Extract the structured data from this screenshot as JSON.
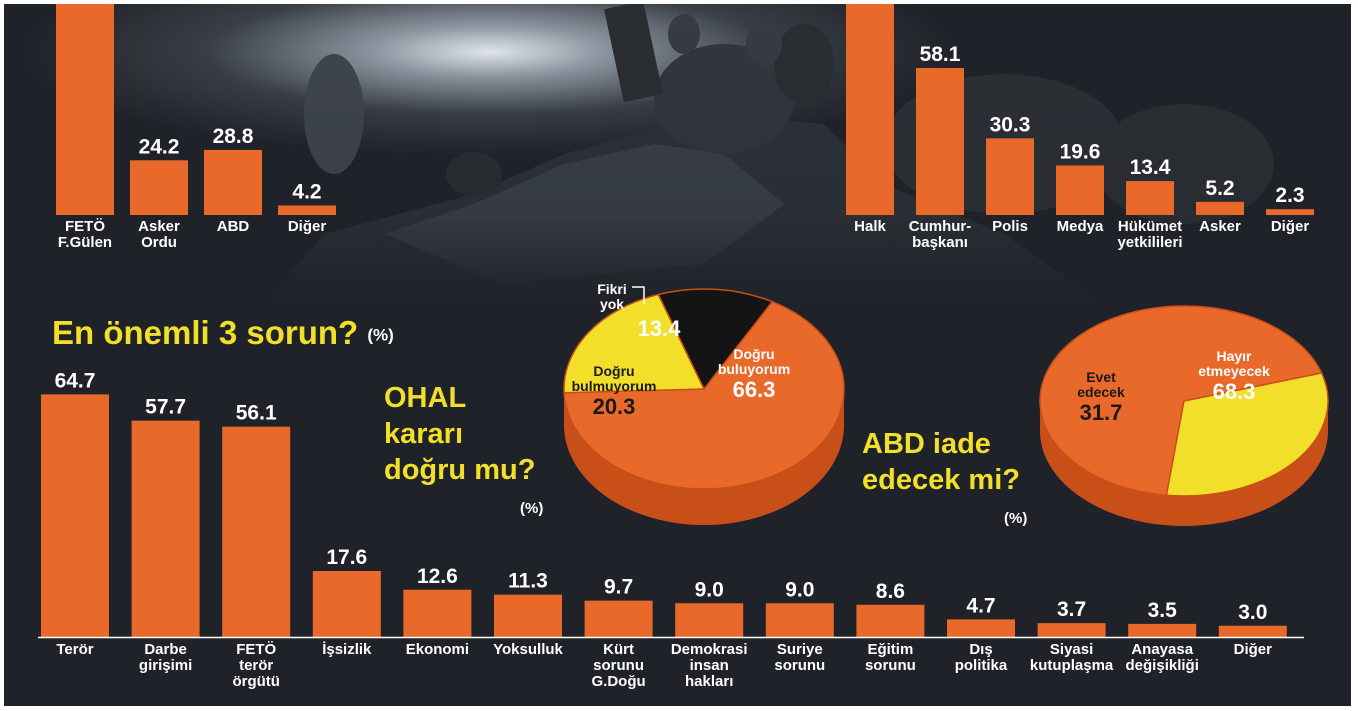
{
  "colors": {
    "bar": "#e8692a",
    "pie_main": "#e8692a",
    "pie_yellow": "#f2df2a",
    "pie_black": "#141414",
    "pie_side": "#c94f18",
    "heading": "#f2df2a",
    "background": "#1f2228"
  },
  "chart_data": [
    {
      "id": "top-left",
      "type": "bar",
      "categories": [
        "FETÖ\nF.Gülen",
        "Asker\nOrdu",
        "ABD",
        "Diğer"
      ],
      "values": [
        null,
        24.2,
        28.8,
        4.2
      ],
      "value_labels": [
        "",
        "24.2",
        "28.8",
        "4.2"
      ]
    },
    {
      "id": "top-right",
      "type": "bar",
      "categories": [
        "Halk",
        "Cumhur-\nbaşkanı",
        "Polis",
        "Medya",
        "Hükümet\nyetkilileri",
        "Asker",
        "Diğer"
      ],
      "values": [
        null,
        58.1,
        30.3,
        19.6,
        13.4,
        5.2,
        2.3
      ],
      "value_labels": [
        "",
        "58.1",
        "30.3",
        "19.6",
        "13.4",
        "5.2",
        "2.3"
      ]
    },
    {
      "id": "sorun",
      "type": "bar",
      "title": "En önemli 3 sorun?",
      "unit": "(%)",
      "categories": [
        "Terör",
        "Darbe\ngirişimi",
        "FETÖ\nterör\nörgütü",
        "İşsizlik",
        "Ekonomi",
        "Yoksulluk",
        "Kürt\nsorunu\nG.Doğu",
        "Demokrasi\ninsan\nhakları",
        "Suriye\nsorunu",
        "Eğitim\nsorunu",
        "Dış\npolitika",
        "Siyasi\nkutuplaşma",
        "Anayasa\ndeğişikliği",
        "Diğer"
      ],
      "values": [
        64.7,
        57.7,
        56.1,
        17.6,
        12.6,
        11.3,
        9.7,
        9.0,
        9.0,
        8.6,
        4.7,
        3.7,
        3.5,
        3.0
      ],
      "value_labels": [
        "64.7",
        "57.7",
        "56.1",
        "17.6",
        "12.6",
        "11.3",
        "9.7",
        "9.0",
        "9.0",
        "8.6",
        "4.7",
        "3.7",
        "3.5",
        "3.0"
      ]
    },
    {
      "id": "ohal",
      "type": "pie",
      "title": "OHAL\nkararı\ndoğru mu?",
      "unit": "(%)",
      "slices": [
        {
          "name": "Doğru\nbuluyorum",
          "value": 66.3,
          "value_label": "66.3",
          "color": "#e8692a"
        },
        {
          "name": "Doğru\nbulmuyorum",
          "value": 20.3,
          "value_label": "20.3",
          "color": "#f2df2a"
        },
        {
          "name": "Fikri\nyok",
          "value": 13.4,
          "value_label": "13.4",
          "color": "#141414"
        }
      ]
    },
    {
      "id": "abd",
      "type": "pie",
      "title": "ABD iade\nedecek mi?",
      "unit": "(%)",
      "slices": [
        {
          "name": "Hayır\netmeyecek",
          "value": 68.3,
          "value_label": "68.3",
          "color": "#e8692a"
        },
        {
          "name": "Evet\nedecek",
          "value": 31.7,
          "value_label": "31.7",
          "color": "#f2df2a"
        }
      ]
    }
  ]
}
